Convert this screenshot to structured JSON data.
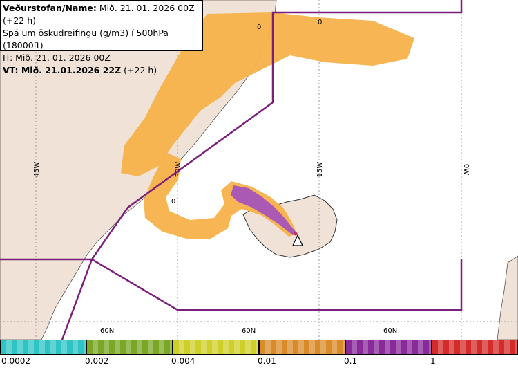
{
  "info": {
    "line1_bold": "Veðurstofan/Name:",
    "line1_rest": "Mið. 21. 01. 2026 00Z (+22 h)",
    "line2": "Spá um öskudreifingu (g/m3) í 500hPa (18000ft)",
    "line3": "IT: Mið. 21. 01. 2026 00Z",
    "line4_bold": "VT: Mið. 21.01.2026 22Z",
    "line4_rest": "(+22 h)"
  },
  "map_labels": {
    "lon_45w": "45W",
    "lon_30w": "30W",
    "lon_15w": "15W",
    "lon_0w": "0W",
    "lat_60n_a": "60N",
    "lat_60n_b": "60N",
    "lat_60n_c": "60N",
    "contour_0_a": "0",
    "contour_0_b": "0",
    "contour_0_c": "0"
  },
  "legend": {
    "colors": [
      "#2ec4c4",
      "#7aa826",
      "#cfcf2a",
      "#d98b2a",
      "#8a2a9a",
      "#d42a2a"
    ],
    "ticks": [
      "0.0002",
      "0.002",
      "0.004",
      "0.01",
      "0.1",
      "1"
    ]
  },
  "colors": {
    "land": "#f0e2d6",
    "ash_light": "#f7b24a",
    "ash_purple": "#a655b8",
    "boundary": "#7a1f7a"
  }
}
